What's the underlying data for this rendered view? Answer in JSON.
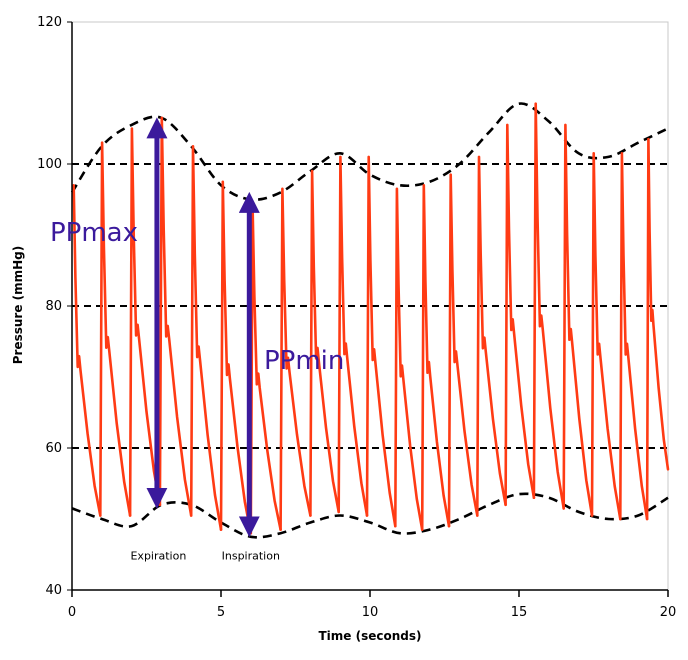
{
  "chart_data": {
    "type": "line",
    "xlabel": "Time (seconds)",
    "ylabel": "Pressure (mmHg)",
    "xlim": [
      0,
      20
    ],
    "ylim": [
      40,
      120
    ],
    "x_ticks": [
      0,
      5,
      10,
      15,
      20
    ],
    "y_ticks": [
      40,
      60,
      80,
      100,
      120
    ],
    "reference_lines": [
      60,
      80,
      100
    ],
    "series": [
      {
        "color": "#ff3b14",
        "beats": [
          {
            "t": 0.0,
            "sys": 97,
            "dia": 52
          },
          {
            "t": 0.95,
            "sys": 103,
            "dia": 50.5
          },
          {
            "t": 1.95,
            "sys": 105,
            "dia": 50.5
          },
          {
            "t": 2.95,
            "sys": 106.5,
            "dia": 52
          },
          {
            "t": 4.0,
            "sys": 102.5,
            "dia": 50.5
          },
          {
            "t": 5.0,
            "sys": 97.5,
            "dia": 48.5
          },
          {
            "t": 6.0,
            "sys": 94,
            "dia": 48
          },
          {
            "t": 7.0,
            "sys": 96.5,
            "dia": 48.5
          },
          {
            "t": 8.0,
            "sys": 99,
            "dia": 50.5
          },
          {
            "t": 8.95,
            "sys": 101,
            "dia": 51
          },
          {
            "t": 9.9,
            "sys": 101,
            "dia": 50.5
          },
          {
            "t": 10.85,
            "sys": 96.5,
            "dia": 49
          },
          {
            "t": 11.75,
            "sys": 97,
            "dia": 48.5
          },
          {
            "t": 12.65,
            "sys": 98.5,
            "dia": 49
          },
          {
            "t": 13.6,
            "sys": 101,
            "dia": 50.5
          },
          {
            "t": 14.55,
            "sys": 105.5,
            "dia": 52
          },
          {
            "t": 15.5,
            "sys": 108.5,
            "dia": 53
          },
          {
            "t": 16.5,
            "sys": 105.5,
            "dia": 51.5
          },
          {
            "t": 17.45,
            "sys": 101.5,
            "dia": 50.5
          },
          {
            "t": 18.4,
            "sys": 101.5,
            "dia": 50
          },
          {
            "t": 19.3,
            "sys": 103.5,
            "dia": 50
          },
          {
            "t": 20.0,
            "sys": null,
            "dia": 57
          }
        ]
      }
    ],
    "upper_envelope": {
      "x": [
        0,
        1,
        2,
        3,
        4,
        5,
        6,
        7,
        8,
        9,
        10,
        11,
        12,
        13,
        14,
        15,
        16,
        17,
        18,
        19,
        20
      ],
      "y": [
        96,
        102.5,
        105.5,
        106.5,
        102.5,
        97,
        95,
        96,
        99,
        101.5,
        98.5,
        97,
        97.5,
        100,
        104.5,
        108.5,
        106,
        101.5,
        101,
        103,
        105
      ]
    },
    "lower_envelope": {
      "x": [
        0,
        1,
        2,
        3,
        4,
        5,
        6,
        7,
        8,
        9,
        10,
        11,
        12,
        13,
        14,
        15,
        16,
        17,
        18,
        19,
        20
      ],
      "y": [
        51.5,
        50,
        49,
        52,
        52,
        49.5,
        47.5,
        48,
        49.5,
        50.5,
        49.5,
        48,
        48.5,
        50,
        52,
        53.5,
        53,
        51,
        50,
        50.5,
        53
      ]
    },
    "annotations": {
      "ppmax": {
        "label": "PPmax",
        "x": 2.85,
        "from": 51.5,
        "to": 106.5
      },
      "ppmin": {
        "label": "PPmin",
        "x": 5.95,
        "from": 47.5,
        "to": 96
      },
      "phases": [
        {
          "label": "Expiration",
          "x": 2.9,
          "y": 44.3
        },
        {
          "label": "Inspiration",
          "x": 6.0,
          "y": 44.3
        }
      ]
    },
    "colors": {
      "trace": "#ff3b14",
      "arrow": "#3b1a9c",
      "label": "#3b1a9c",
      "reference": "#000000",
      "envelope": "#000000"
    }
  }
}
